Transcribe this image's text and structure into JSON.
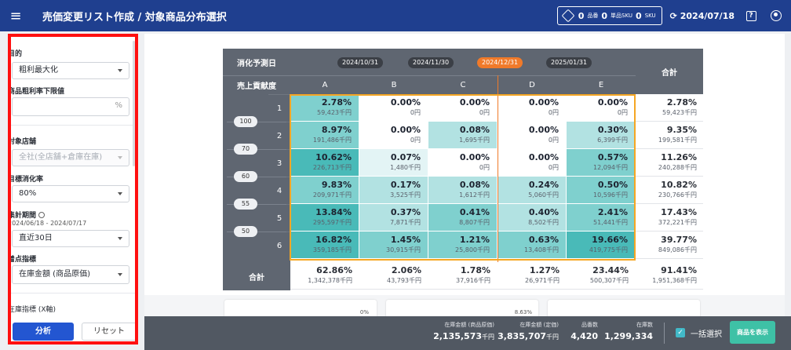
{
  "header": {
    "title": "売価変更リスト作成 / 対象商品分布選択",
    "sku_summary": {
      "v1": "0",
      "l1": "品番",
      "v2": "0",
      "l2": "単品SKU",
      "v3": "0",
      "l3": "SKU"
    },
    "date": "2024/07/18",
    "help_label": "?"
  },
  "sidebar": {
    "purpose_label": "目的",
    "purpose_value": "粗利最大化",
    "margin_label": "商品粗利率下限値",
    "margin_value": "",
    "margin_unit": "%",
    "store_label": "対象店舗",
    "store_value": "全社(全店舗+倉庫在庫)",
    "target_rate_label": "目標消化率",
    "target_rate_value": "80%",
    "period_label": "集計期間",
    "period_range": "2024/06/18 - 2024/07/17",
    "period_value": "直近30日",
    "focus_label": "着点指標",
    "focus_value": "在庫金額 (商品原価)",
    "stock_label": "在庫指標 (X軸)",
    "analyze_label": "分析",
    "reset_label": "リセット"
  },
  "matrix": {
    "corner_top": "消化予測日",
    "corner_bottom": "売上貢献度",
    "total_label": "合計",
    "dates": [
      "2024/10/31",
      "2024/11/30",
      "2024/12/31",
      "2025/01/31"
    ],
    "active_date_index": 2,
    "columns": [
      "A",
      "B",
      "C",
      "D",
      "E"
    ],
    "row_ranks": [
      "1",
      "2",
      "3",
      "4",
      "5",
      "6"
    ],
    "boundaries": [
      "100",
      "70",
      "60",
      "55",
      "50"
    ],
    "rows": [
      {
        "cells": [
          {
            "p": "2.78%",
            "v": "59,423千円",
            "level": 2
          },
          {
            "p": "0.00%",
            "v": "0円",
            "level": 0
          },
          {
            "p": "0.00%",
            "v": "0円",
            "level": 0
          },
          {
            "p": "0.00%",
            "v": "0円",
            "level": 0
          },
          {
            "p": "0.00%",
            "v": "0円",
            "level": 0
          }
        ],
        "total": {
          "p": "2.78%",
          "v": "59,423千円"
        }
      },
      {
        "cells": [
          {
            "p": "8.97%",
            "v": "191,486千円",
            "level": 2
          },
          {
            "p": "0.00%",
            "v": "0円",
            "level": 0
          },
          {
            "p": "0.08%",
            "v": "1,695千円",
            "level": 1
          },
          {
            "p": "0.00%",
            "v": "0円",
            "level": 0
          },
          {
            "p": "0.30%",
            "v": "6,399千円",
            "level": 1
          }
        ],
        "total": {
          "p": "9.35%",
          "v": "199,581千円"
        }
      },
      {
        "cells": [
          {
            "p": "10.62%",
            "v": "226,713千円",
            "level": 3
          },
          {
            "p": "0.07%",
            "v": "1,480千円",
            "level": 0.5
          },
          {
            "p": "0.00%",
            "v": "0円",
            "level": 0
          },
          {
            "p": "0.00%",
            "v": "0円",
            "level": 0
          },
          {
            "p": "0.57%",
            "v": "12,094千円",
            "level": 2
          }
        ],
        "total": {
          "p": "11.26%",
          "v": "240,288千円"
        }
      },
      {
        "cells": [
          {
            "p": "9.83%",
            "v": "209,971千円",
            "level": 2
          },
          {
            "p": "0.17%",
            "v": "3,525千円",
            "level": 1
          },
          {
            "p": "0.08%",
            "v": "1,612千円",
            "level": 1
          },
          {
            "p": "0.24%",
            "v": "5,060千円",
            "level": 1
          },
          {
            "p": "0.50%",
            "v": "10,596千円",
            "level": 2
          }
        ],
        "total": {
          "p": "10.82%",
          "v": "230,766千円"
        }
      },
      {
        "cells": [
          {
            "p": "13.84%",
            "v": "295,597千円",
            "level": 3
          },
          {
            "p": "0.37%",
            "v": "7,871千円",
            "level": 1
          },
          {
            "p": "0.41%",
            "v": "8,807千円",
            "level": 2
          },
          {
            "p": "0.40%",
            "v": "8,502千円",
            "level": 1
          },
          {
            "p": "2.41%",
            "v": "51,441千円",
            "level": 2
          }
        ],
        "total": {
          "p": "17.43%",
          "v": "372,221千円"
        }
      },
      {
        "cells": [
          {
            "p": "16.82%",
            "v": "359,185千円",
            "level": 3
          },
          {
            "p": "1.45%",
            "v": "30,915千円",
            "level": 2
          },
          {
            "p": "1.21%",
            "v": "25,800千円",
            "level": 2
          },
          {
            "p": "0.63%",
            "v": "13,408千円",
            "level": 2
          },
          {
            "p": "19.66%",
            "v": "419,775千円",
            "level": 3
          }
        ],
        "total": {
          "p": "39.77%",
          "v": "849,086千円"
        }
      }
    ],
    "col_totals": [
      {
        "p": "62.86%",
        "v": "1,342,378千円"
      },
      {
        "p": "2.06%",
        "v": "43,793千円"
      },
      {
        "p": "1.78%",
        "v": "37,916千円"
      },
      {
        "p": "1.27%",
        "v": "26,971千円"
      },
      {
        "p": "23.44%",
        "v": "500,307千円"
      }
    ],
    "grand_total": {
      "p": "91.41%",
      "v": "1,951,368千円"
    }
  },
  "mini_cards": {
    "c1": "0%",
    "c2": "8.63%"
  },
  "bottom_bar": {
    "stock_cost_label": "在庫金額 (商品原価)",
    "stock_cost_value": "2,135,573",
    "stock_price_label": "在庫金額 (定価)",
    "stock_price_value": "3,835,707",
    "unit_thousand": "千円",
    "items_label": "品番数",
    "items_value": "4,420",
    "qty_label": "在庫数",
    "qty_value": "1,299,334",
    "select_all_label": "一括選択",
    "show_products_label": "商品を表示"
  },
  "colors": {
    "accent": "#1f3f8f",
    "level1": "#b2e2e2",
    "level2": "#7fd0ce",
    "level3": "#49bab8",
    "frame": "#f5a623",
    "active_date": "#f07a2a"
  }
}
